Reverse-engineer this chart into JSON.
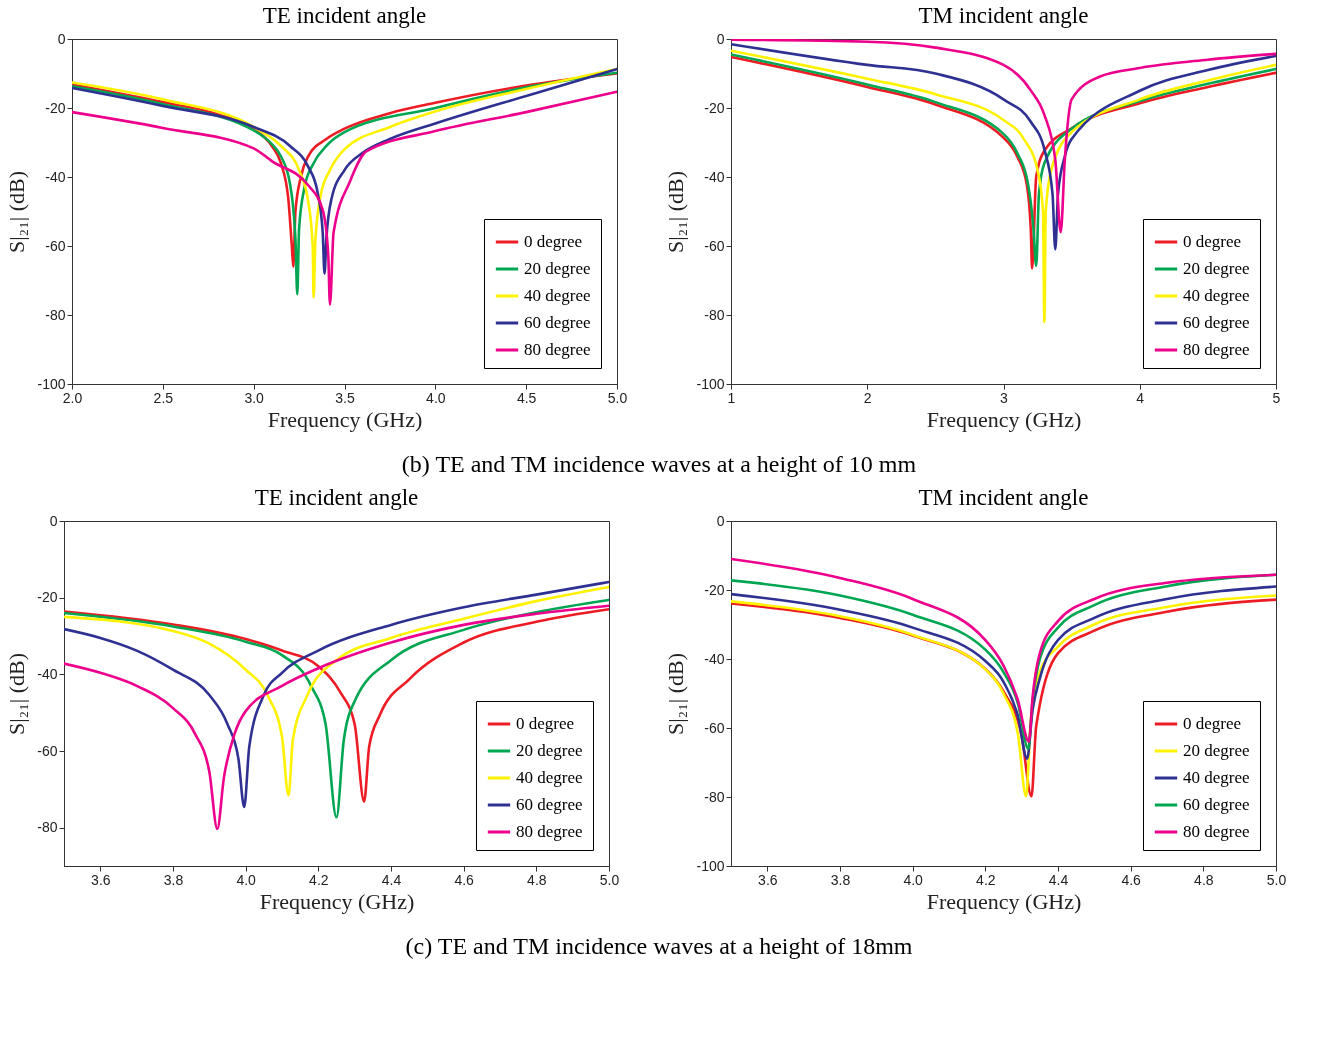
{
  "chart_data": [
    {
      "type": "line",
      "title": "TE incident angle",
      "xlabel": "Frequency (GHz)",
      "ylabel": "S|₂₁| (dB)",
      "xlim": [
        2,
        5
      ],
      "ylim": [
        -100,
        0
      ],
      "xticks": [
        {
          "value": 2,
          "label": "2.0"
        },
        {
          "value": 2.5,
          "label": "2.5"
        },
        {
          "value": 3,
          "label": "3.0"
        },
        {
          "value": 3.5,
          "label": "3.5"
        },
        {
          "value": 4,
          "label": "4.0"
        },
        {
          "value": 4.5,
          "label": "4.5"
        },
        {
          "value": 5,
          "label": "5.0"
        }
      ],
      "yticks": [
        0,
        -20,
        -40,
        -60,
        -80,
        -100
      ],
      "legend": "bottom right",
      "grid": false,
      "annotations": [
        "(b) TE and TM incidence waves at a height of 10 mm"
      ],
      "series": [
        {
          "name": "0 degree",
          "color": "#ed1c24",
          "x": [
            2.0,
            2.5,
            2.8,
            3.0,
            3.1,
            3.15,
            3.19,
            3.21,
            3.218,
            3.23,
            3.26,
            3.3,
            3.4,
            3.5,
            3.75,
            4.0,
            4.5,
            5.0
          ],
          "values": [
            -13.2,
            -18.3,
            -21.8,
            -26,
            -31,
            -36,
            -46,
            -60,
            -66,
            -50,
            -40,
            -34,
            -29,
            -26,
            -21.5,
            -18.5,
            -13.5,
            -10
          ]
        },
        {
          "name": "20 degree",
          "color": "#00a651",
          "x": [
            2.0,
            2.5,
            3.0,
            3.1,
            3.15,
            3.2,
            3.23,
            3.24,
            3.25,
            3.28,
            3.33,
            3.4,
            3.5,
            4.0,
            4.5,
            5.0
          ],
          "values": [
            -13.7,
            -18.9,
            -26.5,
            -30.5,
            -34,
            -42,
            -58,
            -74,
            -55,
            -43,
            -36,
            -31,
            -27,
            -20,
            -14,
            -9.8
          ]
        },
        {
          "name": "40 degree",
          "color": "#fff200",
          "x": [
            2.0,
            2.5,
            3.0,
            3.15,
            3.25,
            3.3,
            3.325,
            3.33,
            3.34,
            3.37,
            3.42,
            3.5,
            3.75,
            4.0,
            4.5,
            5.0
          ],
          "values": [
            -12.6,
            -17.5,
            -25.5,
            -31,
            -38,
            -47,
            -60,
            -75,
            -58,
            -45,
            -38,
            -32,
            -25.5,
            -21,
            -14.5,
            -8.7
          ]
        },
        {
          "name": "60 degree",
          "color": "#2e3192",
          "x": [
            2.0,
            2.5,
            3.0,
            3.2,
            3.3,
            3.35,
            3.38,
            3.39,
            3.4,
            3.43,
            3.5,
            3.6,
            3.75,
            4.0,
            4.5,
            5.0
          ],
          "values": [
            -14.2,
            -19.4,
            -25.5,
            -31,
            -37,
            -44,
            -56,
            -68,
            -58,
            -46,
            -38,
            -33,
            -29,
            -24.5,
            -16.5,
            -8.7
          ]
        },
        {
          "name": "80 degree",
          "color": "#ec008c",
          "x": [
            2.0,
            2.5,
            3.0,
            3.1,
            3.3,
            3.38,
            3.41,
            3.42,
            3.44,
            3.53,
            3.62,
            4.0,
            4.5,
            5.0
          ],
          "values": [
            -21.2,
            -25.8,
            -31.7,
            -35.4,
            -42.4,
            -49.5,
            -62,
            -77,
            -56,
            -41.3,
            -32.6,
            -26.7,
            -21.2,
            -15.3
          ]
        }
      ]
    },
    {
      "type": "line",
      "title": "TM incident angle",
      "xlabel": "Frequency (GHz)",
      "ylabel": "S|₂₁| (dB)",
      "xlim": [
        1,
        5
      ],
      "ylim": [
        -100,
        0
      ],
      "xticks": [
        1,
        2,
        3,
        4,
        5
      ],
      "yticks": [
        0,
        -20,
        -40,
        -60,
        -80,
        -100
      ],
      "legend": "bottom right",
      "grid": false,
      "series": [
        {
          "name": "0 degree",
          "color": "#ed1c24",
          "x": [
            1,
            2,
            2.5,
            3,
            3.1,
            3.17,
            3.2,
            3.21,
            3.24,
            3.3,
            3.5,
            4,
            4.5,
            5
          ],
          "values": [
            -5.2,
            -13.9,
            -19,
            -28.6,
            -34,
            -42,
            -55,
            -66.5,
            -40,
            -32.4,
            -25.9,
            -18.6,
            -13.9,
            -9.8
          ]
        },
        {
          "name": "20 degree",
          "color": "#00a651",
          "x": [
            1,
            2,
            2.5,
            3,
            3.1,
            3.18,
            3.22,
            3.24,
            3.26,
            3.3,
            3.5,
            4,
            4.5,
            5
          ],
          "values": [
            -4.5,
            -13.2,
            -18.3,
            -27.5,
            -33,
            -42,
            -55,
            -65.8,
            -45,
            -36,
            -26,
            -18,
            -13,
            -8.7
          ]
        },
        {
          "name": "40 degree",
          "color": "#fff200",
          "x": [
            1,
            2,
            2.5,
            3,
            3.15,
            3.25,
            3.29,
            3.3,
            3.31,
            3.35,
            3.5,
            4,
            4.5,
            5
          ],
          "values": [
            -3.4,
            -11.5,
            -16,
            -23.5,
            -29,
            -38,
            -50,
            -82,
            -50,
            -38,
            -27,
            -17.5,
            -12,
            -7.5
          ]
        },
        {
          "name": "60 degree",
          "color": "#2e3192",
          "x": [
            1,
            2,
            2.5,
            3,
            3.2,
            3.3,
            3.36,
            3.38,
            3.4,
            3.45,
            3.5,
            4,
            4.5,
            5
          ],
          "values": [
            -1.5,
            -7.5,
            -10,
            -17.5,
            -24,
            -32,
            -45,
            -61,
            -45,
            -34,
            -29,
            -15,
            -9,
            -4.9
          ]
        },
        {
          "name": "80 degree",
          "color": "#ec008c",
          "x": [
            1,
            2,
            2.5,
            3,
            3.2,
            3.3,
            3.38,
            3.42,
            3.45,
            3.5,
            3.7,
            4,
            4.5,
            5
          ],
          "values": [
            -0.2,
            -0.8,
            -2.5,
            -7.5,
            -14.9,
            -22,
            -35,
            -56,
            -35,
            -17.5,
            -11,
            -8.4,
            -6,
            -4.3
          ]
        }
      ]
    },
    {
      "type": "line",
      "title": "TE incident angle",
      "xlabel": "Frequency (GHz)",
      "ylabel": "S|₂₁| (dB)",
      "xlim": [
        3.5,
        5
      ],
      "ylim": [
        -90,
        0
      ],
      "xticks": [
        3.6,
        3.8,
        {
          "value": 4,
          "label": "4.0"
        },
        4.2,
        4.4,
        4.6,
        4.8,
        {
          "value": 5,
          "label": "5.0"
        }
      ],
      "yticks": [
        0,
        -20,
        -40,
        -60,
        -80
      ],
      "legend": "bottom right",
      "grid": false,
      "annotations": [
        "(c) TE and TM incidence waves at a height of 18mm"
      ],
      "series": [
        {
          "name": "0 degree",
          "color": "#ed1c24",
          "x": [
            3.5,
            3.8,
            4.0,
            4.1,
            4.2,
            4.26,
            4.3,
            4.326,
            4.34,
            4.37,
            4.45,
            4.6,
            4.8,
            5.0
          ],
          "values": [
            -23.6,
            -27,
            -30.8,
            -33.8,
            -37.9,
            -44.6,
            -53,
            -73.2,
            -58.8,
            -50.5,
            -41.3,
            -31.7,
            -26.3,
            -23
          ]
        },
        {
          "name": "20 degree",
          "color": "#00a651",
          "x": [
            3.5,
            3.8,
            4.0,
            4.1,
            4.18,
            4.22,
            4.25,
            4.27,
            4.3,
            4.4,
            4.6,
            4.8,
            5.0
          ],
          "values": [
            -24,
            -27.5,
            -31.5,
            -35,
            -43,
            -53,
            -77.3,
            -57.2,
            -47,
            -36.3,
            -28.4,
            -23.8,
            -20.6
          ]
        },
        {
          "name": "40 degree",
          "color": "#fff200",
          "x": [
            3.5,
            3.8,
            3.9,
            4.0,
            4.06,
            4.1,
            4.118,
            4.13,
            4.17,
            4.25,
            4.4,
            4.6,
            4.8,
            5.0
          ],
          "values": [
            -25,
            -28.7,
            -32,
            -38.8,
            -45.4,
            -56.3,
            -71.6,
            -57,
            -45.4,
            -36.3,
            -30.5,
            -25.5,
            -20.9,
            -17.2
          ]
        },
        {
          "name": "60 degree",
          "color": "#2e3192",
          "x": [
            3.5,
            3.6,
            3.7,
            3.8,
            3.9,
            3.95,
            3.98,
            3.996,
            4.01,
            4.05,
            4.1,
            4.2,
            4.4,
            4.6,
            4.8,
            5.0
          ],
          "values": [
            -28.2,
            -30.5,
            -33.8,
            -38.8,
            -45.4,
            -53,
            -62,
            -74.6,
            -58.8,
            -45.4,
            -39.6,
            -33.8,
            -27.1,
            -22.5,
            -19.2,
            -15.9
          ]
        },
        {
          "name": "80 degree",
          "color": "#ec008c",
          "x": [
            3.5,
            3.6,
            3.7,
            3.8,
            3.86,
            3.9,
            3.922,
            3.94,
            3.97,
            4.0,
            4.1,
            4.2,
            4.4,
            4.6,
            4.8,
            5.0
          ],
          "values": [
            -37.2,
            -39.6,
            -43,
            -48.8,
            -55.4,
            -65.4,
            -80.3,
            -67,
            -55.4,
            -49.6,
            -43,
            -38.4,
            -31.7,
            -27.1,
            -24.2,
            -22.1
          ]
        }
      ]
    },
    {
      "type": "line",
      "title": "TM incident angle",
      "xlabel": "Frequency (GHz)",
      "ylabel": "S|₂₁| (dB)",
      "xlim": [
        3.5,
        5
      ],
      "ylim": [
        -100,
        0
      ],
      "xticks": [
        3.6,
        3.8,
        {
          "value": 4,
          "label": "4.0"
        },
        4.2,
        4.4,
        4.6,
        4.8,
        {
          "value": 5,
          "label": "5.0"
        }
      ],
      "yticks": [
        0,
        -20,
        -40,
        -60,
        -80,
        -100
      ],
      "legend": "bottom right",
      "grid": false,
      "series": [
        {
          "name": "0 degree",
          "color": "#ed1c24",
          "x": [
            3.5,
            3.8,
            4.0,
            4.2,
            4.25,
            4.3,
            4.327,
            4.34,
            4.4,
            4.5,
            4.7,
            5.0
          ],
          "values": [
            -23.9,
            -28.1,
            -33.2,
            -42.9,
            -49.4,
            -62.3,
            -79.8,
            -59.5,
            -38.3,
            -31.8,
            -26.3,
            -22.8
          ]
        },
        {
          "name": "20 degree",
          "color": "#fff200",
          "x": [
            3.5,
            3.8,
            4.0,
            4.2,
            4.25,
            4.29,
            4.312,
            4.325,
            4.35,
            4.4,
            4.5,
            4.7,
            5.0
          ],
          "values": [
            -23.3,
            -27.6,
            -33,
            -43,
            -50,
            -62,
            -79.8,
            -58,
            -43.7,
            -36.4,
            -30,
            -24.9,
            -21.6
          ]
        },
        {
          "name": "40 degree",
          "color": "#2e3192",
          "x": [
            3.5,
            3.8,
            4.0,
            4.2,
            4.25,
            4.29,
            4.315,
            4.33,
            4.35,
            4.4,
            4.5,
            4.7,
            5.0
          ],
          "values": [
            -21.2,
            -25.7,
            -30.9,
            -40.6,
            -46.6,
            -56.7,
            -68.9,
            -54.8,
            -45.6,
            -34.5,
            -28.1,
            -22.6,
            -19
          ]
        },
        {
          "name": "60 degree",
          "color": "#00a651",
          "x": [
            3.5,
            3.8,
            4.0,
            4.2,
            4.25,
            4.29,
            4.318,
            4.33,
            4.35,
            4.4,
            4.5,
            4.7,
            5.0
          ],
          "values": [
            -17.2,
            -21.6,
            -27.2,
            -37.3,
            -43.8,
            -53,
            -66,
            -52.1,
            -40,
            -30.9,
            -24.4,
            -18.9,
            -15.6
          ]
        },
        {
          "name": "80 degree",
          "color": "#ec008c",
          "x": [
            3.5,
            3.8,
            4.0,
            4.2,
            4.25,
            4.29,
            4.32,
            4.33,
            4.35,
            4.4,
            4.5,
            4.7,
            5.0
          ],
          "values": [
            -11,
            -16.5,
            -22.6,
            -34.5,
            -41.9,
            -52.1,
            -64,
            -51.2,
            -38.3,
            -29,
            -22.6,
            -17.9,
            -15.6
          ]
        }
      ]
    }
  ]
}
